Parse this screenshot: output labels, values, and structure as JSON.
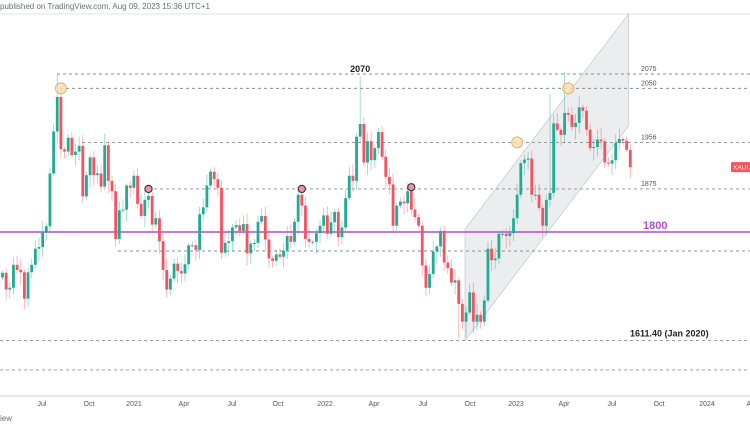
{
  "header": {
    "published": "published on TradingView.com, Aug 09, 2023 15:36 UTC+1"
  },
  "footer": {
    "brand": "iew"
  },
  "colors": {
    "up": "#22ab94",
    "down": "#f7525f",
    "level_1800": "#b14fd1",
    "dashed": "#8a8d96",
    "channel": "#e6e7ea",
    "symbol_badge": "#f7525f"
  },
  "chart_data": {
    "type": "candlestick",
    "symbol": "XAUUSD",
    "interval": "weekly",
    "start_week": "2020-04-20",
    "ylim": [
      1530,
      2190
    ],
    "x_tick_labels": [
      "Jul",
      "Oct",
      "2021",
      "Apr",
      "Jul",
      "Oct",
      "2022",
      "Apr",
      "Jul",
      "Oct",
      "2023",
      "Apr",
      "Jul",
      "Oct",
      "2024",
      "Apr"
    ],
    "close": [
      1729,
      1700,
      1703,
      1743,
      1734,
      1730,
      1684,
      1730,
      1743,
      1771,
      1774,
      1799,
      1810,
      1902,
      1975,
      2035,
      1944,
      1940,
      1964,
      1934,
      1940,
      1950,
      1862,
      1899,
      1930,
      1899,
      1902,
      1879,
      1951,
      1889,
      1871,
      1788,
      1838,
      1839,
      1881,
      1877,
      1898,
      1849,
      1828,
      1856,
      1863,
      1813,
      1824,
      1784,
      1734,
      1700,
      1719,
      1745,
      1732,
      1728,
      1744,
      1777,
      1777,
      1769,
      1831,
      1843,
      1881,
      1905,
      1892,
      1877,
      1764,
      1781,
      1784,
      1808,
      1812,
      1802,
      1814,
      1763,
      1780,
      1781,
      1818,
      1828,
      1787,
      1754,
      1750,
      1761,
      1757,
      1768,
      1793,
      1783,
      1818,
      1865,
      1846,
      1788,
      1783,
      1783,
      1798,
      1811,
      1829,
      1797,
      1817,
      1835,
      1791,
      1808,
      1859,
      1898,
      1889,
      1966,
      1988,
      1921,
      1958,
      1925,
      1946,
      1974,
      1931,
      1896,
      1883,
      1811,
      1846,
      1853,
      1850,
      1871,
      1839,
      1826,
      1811,
      1742,
      1703,
      1727,
      1766,
      1775,
      1802,
      1747,
      1737,
      1712,
      1716,
      1675,
      1644,
      1660,
      1695,
      1644,
      1656,
      1644,
      1681,
      1771,
      1751,
      1754,
      1797,
      1797,
      1793,
      1798,
      1824,
      1865,
      1920,
      1926,
      1928,
      1865,
      1865,
      1842,
      1811,
      1856,
      1868,
      1989,
      1978,
      1969,
      2007,
      2004,
      1983,
      1990,
      2017,
      2011,
      1978,
      1946,
      1948,
      1961,
      1958,
      1921,
      1919,
      1925,
      1955,
      1962,
      1959,
      1943,
      1913
    ],
    "high_overrides": {
      "15": 2075,
      "98": 2070,
      "154": 2079,
      "150": 2040
    },
    "low_overrides": {
      "125": 1615,
      "127": 1617
    },
    "levels": [
      {
        "value": 2075,
        "label": "2075",
        "style": "dashed"
      },
      {
        "value": 2050,
        "label": "2050",
        "style": "dashed"
      },
      {
        "value": 1956,
        "label": "1956",
        "style": "dashed"
      },
      {
        "value": 1875,
        "label": "1875",
        "style": "dashed"
      },
      {
        "value": 1800,
        "label": "1800",
        "style": "solid"
      },
      {
        "value": 1767,
        "label": "",
        "style": "dashed"
      },
      {
        "value": 1611.4,
        "label": "1611.40 (Jan 2020)",
        "style": "dashed"
      },
      {
        "value": 1560,
        "label": "",
        "style": "dashed"
      }
    ],
    "annotations": [
      {
        "text": "2070",
        "week_index": 98,
        "value": 2070
      }
    ],
    "touch_markers": [
      {
        "type": "resistance",
        "week_index": 16,
        "value": 2050
      },
      {
        "type": "resistance",
        "week_index": 141,
        "value": 1956
      },
      {
        "type": "resistance",
        "week_index": 155,
        "value": 2050
      },
      {
        "type": "support-resistance",
        "week_index": 40,
        "value": 1875
      },
      {
        "type": "support-resistance",
        "week_index": 82,
        "value": 1875
      },
      {
        "type": "support-resistance",
        "week_index": 112,
        "value": 1878
      }
    ],
    "channel": {
      "type": "ascending",
      "from_week": 127,
      "to_week": 171,
      "lower_start": 1611,
      "lower_end": 1985,
      "upper_start": 1805,
      "upper_end": 2180
    }
  }
}
